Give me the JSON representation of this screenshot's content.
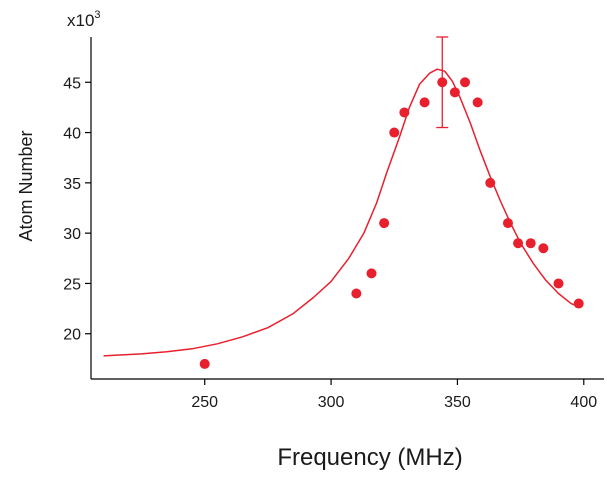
{
  "chart_data": {
    "type": "scatter",
    "xlabel": "Frequency (MHz)",
    "ylabel": "Atom Number",
    "y_multiplier": {
      "base": "x10",
      "exponent": "3"
    },
    "xlim": [
      205,
      408
    ],
    "ylim": [
      15.5,
      49.5
    ],
    "x_ticks": [
      250,
      300,
      350,
      400
    ],
    "y_ticks": [
      20,
      25,
      30,
      35,
      40,
      45
    ],
    "x_tick_labels": [
      "250",
      "300",
      "350",
      "400"
    ],
    "y_tick_labels": [
      "20",
      "25",
      "30",
      "35",
      "40",
      "45"
    ],
    "grid": false,
    "colors": {
      "series": "#e8202e",
      "axis": "#000000"
    },
    "series": [
      {
        "type": "scatter",
        "x": [
          250,
          310,
          316,
          321,
          325,
          329,
          337,
          344,
          349,
          353,
          358,
          363,
          370,
          374,
          379,
          384,
          390,
          398
        ],
        "y": [
          17,
          24,
          26,
          31,
          40,
          42,
          43,
          45,
          44,
          45,
          43,
          35,
          31,
          29,
          29,
          28.5,
          25,
          23
        ]
      },
      {
        "type": "line",
        "x": [
          210,
          217,
          225,
          235,
          245,
          255,
          265,
          275,
          285,
          293,
          300,
          307,
          313,
          318,
          322,
          327,
          331,
          335,
          339,
          342,
          345,
          348,
          351,
          355,
          359,
          363,
          367,
          371,
          375,
          380,
          385,
          390,
          395,
          398
        ],
        "y": [
          17.8,
          17.9,
          18.0,
          18.2,
          18.5,
          19.0,
          19.7,
          20.6,
          22.0,
          23.6,
          25.2,
          27.5,
          30.0,
          33.0,
          36.0,
          39.5,
          42.5,
          44.8,
          45.9,
          46.3,
          46.1,
          45.1,
          43.5,
          41.0,
          38.2,
          35.6,
          33.2,
          31.0,
          29.0,
          27.0,
          25.3,
          24.0,
          23.0,
          22.7
        ]
      }
    ],
    "error_bars": [
      {
        "x": 344,
        "y_low": 40.5,
        "y_high": 49.5
      }
    ]
  }
}
